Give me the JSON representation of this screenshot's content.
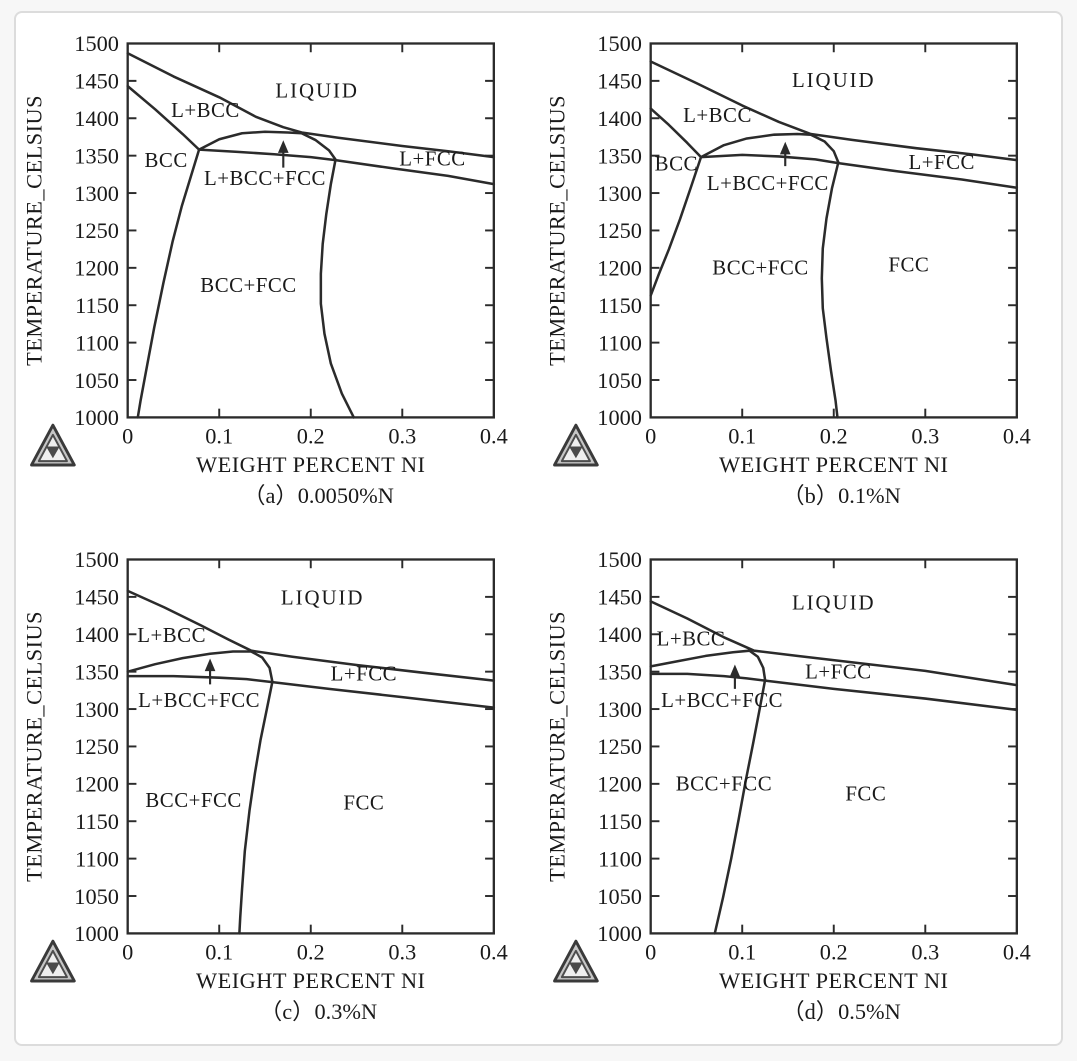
{
  "page": {
    "background": "#f7f7f7",
    "card_background": "#ffffff",
    "card_border": "#dcdcdc",
    "line_color": "#2b2b2b",
    "text_color": "#1a1a1a"
  },
  "branding": {
    "logo": "thermo-calc-triangle-logo"
  },
  "axes": {
    "x": {
      "title": "WEIGHT PERCENT NI",
      "min": 0,
      "max": 0.4,
      "ticks": [
        0,
        0.1,
        0.2,
        0.3,
        0.4
      ],
      "tick_labels": [
        "0",
        "0.1",
        "0.2",
        "0.3",
        "0.4"
      ]
    },
    "y": {
      "title": "TEMPERATURE_CELSIUS",
      "min": 1000,
      "max": 1500,
      "ticks": [
        1000,
        1050,
        1100,
        1150,
        1200,
        1250,
        1300,
        1350,
        1400,
        1450,
        1500
      ],
      "tick_labels": [
        "1000",
        "1050",
        "1100",
        "1150",
        "1200",
        "1250",
        "1300",
        "1350",
        "1400",
        "1450",
        "1500"
      ]
    }
  },
  "chart_data": [
    {
      "type": "line",
      "id": "a",
      "caption": "（a）0.0050%N",
      "xlabel": "WEIGHT PERCENT NI",
      "ylabel": "TEMPERATURE_CELSIUS",
      "xlim": [
        0,
        0.4
      ],
      "ylim": [
        1000,
        1500
      ],
      "arrow": {
        "x": 0.17,
        "y_from": 1334,
        "y_to": 1368
      },
      "region_labels": [
        {
          "text": "LIQUID",
          "x": 0.207,
          "y": 1437
        },
        {
          "text": "L+BCC",
          "x": 0.085,
          "y": 1411
        },
        {
          "text": "BCC",
          "x": 0.042,
          "y": 1344
        },
        {
          "text": "L+BCC+FCC",
          "x": 0.15,
          "y": 1320
        },
        {
          "text": "L+FCC",
          "x": 0.333,
          "y": 1346
        },
        {
          "text": "BCC+FCC",
          "x": 0.132,
          "y": 1177
        }
      ],
      "series": [
        {
          "name": "liquidus-and-L+FCC-upper",
          "points": [
            [
              0,
              1487
            ],
            [
              0.05,
              1456
            ],
            [
              0.1,
              1428
            ],
            [
              0.14,
              1402
            ],
            [
              0.17,
              1388
            ],
            [
              0.19,
              1381
            ],
            [
              0.23,
              1374
            ],
            [
              0.3,
              1363
            ],
            [
              0.35,
              1356
            ],
            [
              0.4,
              1348
            ]
          ]
        },
        {
          "name": "bcc-solidus",
          "points": [
            [
              0,
              1443
            ],
            [
              0.03,
              1412
            ],
            [
              0.06,
              1379
            ],
            [
              0.078,
              1358
            ]
          ]
        },
        {
          "name": "peritectic-dome",
          "points": [
            [
              0.078,
              1358
            ],
            [
              0.1,
              1372
            ],
            [
              0.125,
              1380
            ],
            [
              0.15,
              1382
            ],
            [
              0.175,
              1381
            ],
            [
              0.19,
              1380
            ],
            [
              0.205,
              1371
            ],
            [
              0.22,
              1357
            ],
            [
              0.227,
              1345
            ]
          ]
        },
        {
          "name": "solvus-and-L+FCC-lower",
          "points": [
            [
              0.078,
              1358
            ],
            [
              0.12,
              1355
            ],
            [
              0.16,
              1352
            ],
            [
              0.2,
              1348
            ],
            [
              0.227,
              1344
            ],
            [
              0.29,
              1333
            ],
            [
              0.35,
              1323
            ],
            [
              0.4,
              1312
            ]
          ]
        },
        {
          "name": "bcc-phase-boundary",
          "points": [
            [
              0.078,
              1358
            ],
            [
              0.069,
              1322
            ],
            [
              0.059,
              1282
            ],
            [
              0.049,
              1235
            ],
            [
              0.039,
              1180
            ],
            [
              0.029,
              1120
            ],
            [
              0.021,
              1068
            ],
            [
              0.014,
              1022
            ],
            [
              0.011,
              1000
            ]
          ]
        },
        {
          "name": "fcc-phase-boundary",
          "points": [
            [
              0.227,
              1344
            ],
            [
              0.222,
              1312
            ],
            [
              0.217,
              1272
            ],
            [
              0.213,
              1232
            ],
            [
              0.211,
              1192
            ],
            [
              0.211,
              1152
            ],
            [
              0.215,
              1112
            ],
            [
              0.222,
              1072
            ],
            [
              0.234,
              1032
            ],
            [
              0.247,
              1000
            ]
          ]
        }
      ]
    },
    {
      "type": "line",
      "id": "b",
      "caption": "（b）0.1%N",
      "xlabel": "WEIGHT PERCENT NI",
      "ylabel": "TEMPERATURE_CELSIUS",
      "xlim": [
        0,
        0.4
      ],
      "ylim": [
        1000,
        1500
      ],
      "arrow": {
        "x": 0.147,
        "y_from": 1336,
        "y_to": 1366
      },
      "region_labels": [
        {
          "text": "LIQUID",
          "x": 0.2,
          "y": 1451
        },
        {
          "text": "L+BCC",
          "x": 0.073,
          "y": 1404
        },
        {
          "text": "BCC",
          "x": 0.028,
          "y": 1339
        },
        {
          "text": "L+BCC+FCC",
          "x": 0.128,
          "y": 1313
        },
        {
          "text": "L+FCC",
          "x": 0.318,
          "y": 1341
        },
        {
          "text": "BCC+FCC",
          "x": 0.12,
          "y": 1200
        },
        {
          "text": "FCC",
          "x": 0.282,
          "y": 1204
        }
      ],
      "series": [
        {
          "name": "liquidus-and-L+FCC-upper",
          "points": [
            [
              0,
              1476
            ],
            [
              0.05,
              1447
            ],
            [
              0.1,
              1417
            ],
            [
              0.14,
              1395
            ],
            [
              0.175,
              1379
            ],
            [
              0.22,
              1371
            ],
            [
              0.29,
              1360
            ],
            [
              0.35,
              1352
            ],
            [
              0.4,
              1344
            ]
          ]
        },
        {
          "name": "bcc-solidus",
          "points": [
            [
              0,
              1413
            ],
            [
              0.02,
              1391
            ],
            [
              0.04,
              1367
            ],
            [
              0.055,
              1348
            ]
          ]
        },
        {
          "name": "peritectic-dome",
          "points": [
            [
              0.055,
              1348
            ],
            [
              0.08,
              1364
            ],
            [
              0.105,
              1373
            ],
            [
              0.135,
              1378
            ],
            [
              0.16,
              1379
            ],
            [
              0.175,
              1378
            ],
            [
              0.19,
              1369
            ],
            [
              0.2,
              1356
            ],
            [
              0.205,
              1341
            ]
          ]
        },
        {
          "name": "solvus-and-L+FCC-lower",
          "points": [
            [
              0.055,
              1348
            ],
            [
              0.1,
              1351
            ],
            [
              0.14,
              1349
            ],
            [
              0.18,
              1345
            ],
            [
              0.205,
              1340
            ],
            [
              0.27,
              1329
            ],
            [
              0.34,
              1318
            ],
            [
              0.4,
              1307
            ]
          ]
        },
        {
          "name": "bcc-phase-boundary",
          "points": [
            [
              0.055,
              1348
            ],
            [
              0.044,
              1308
            ],
            [
              0.032,
              1265
            ],
            [
              0.02,
              1225
            ],
            [
              0.009,
              1192
            ],
            [
              0,
              1163
            ]
          ]
        },
        {
          "name": "fcc-phase-boundary",
          "points": [
            [
              0.205,
              1341
            ],
            [
              0.198,
              1306
            ],
            [
              0.192,
              1266
            ],
            [
              0.188,
              1226
            ],
            [
              0.187,
              1186
            ],
            [
              0.188,
              1146
            ],
            [
              0.192,
              1106
            ],
            [
              0.197,
              1062
            ],
            [
              0.202,
              1022
            ],
            [
              0.204,
              1000
            ]
          ]
        }
      ]
    },
    {
      "type": "line",
      "id": "c",
      "caption": "（c）0.3%N",
      "xlabel": "WEIGHT PERCENT NI",
      "ylabel": "TEMPERATURE_CELSIUS",
      "xlim": [
        0,
        0.4
      ],
      "ylim": [
        1000,
        1500
      ],
      "arrow": {
        "x": 0.09,
        "y_from": 1333,
        "y_to": 1365
      },
      "region_labels": [
        {
          "text": "LIQUID",
          "x": 0.213,
          "y": 1449
        },
        {
          "text": "L+BCC",
          "x": 0.048,
          "y": 1399
        },
        {
          "text": "L+BCC+FCC",
          "x": 0.078,
          "y": 1312
        },
        {
          "text": "L+FCC",
          "x": 0.258,
          "y": 1347
        },
        {
          "text": "BCC+FCC",
          "x": 0.072,
          "y": 1178
        },
        {
          "text": "FCC",
          "x": 0.258,
          "y": 1175
        }
      ],
      "series": [
        {
          "name": "liquidus-and-L+FCC-upper",
          "points": [
            [
              0,
              1458
            ],
            [
              0.04,
              1436
            ],
            [
              0.08,
              1412
            ],
            [
              0.11,
              1393
            ],
            [
              0.135,
              1378
            ],
            [
              0.18,
              1370
            ],
            [
              0.25,
              1359
            ],
            [
              0.32,
              1349
            ],
            [
              0.4,
              1338
            ]
          ]
        },
        {
          "name": "peritectic-dome",
          "points": [
            [
              0,
              1350
            ],
            [
              0.03,
              1360
            ],
            [
              0.06,
              1368
            ],
            [
              0.09,
              1374
            ],
            [
              0.115,
              1377
            ],
            [
              0.135,
              1377
            ],
            [
              0.147,
              1369
            ],
            [
              0.155,
              1355
            ],
            [
              0.158,
              1337
            ]
          ]
        },
        {
          "name": "solvus-and-L+FCC-lower",
          "points": [
            [
              0,
              1344
            ],
            [
              0.05,
              1344
            ],
            [
              0.1,
              1342
            ],
            [
              0.13,
              1340
            ],
            [
              0.158,
              1336
            ],
            [
              0.22,
              1327
            ],
            [
              0.3,
              1316
            ],
            [
              0.4,
              1302
            ]
          ]
        },
        {
          "name": "fcc-phase-boundary",
          "points": [
            [
              0.158,
              1336
            ],
            [
              0.152,
              1300
            ],
            [
              0.145,
              1258
            ],
            [
              0.139,
              1214
            ],
            [
              0.133,
              1164
            ],
            [
              0.128,
              1110
            ],
            [
              0.125,
              1060
            ],
            [
              0.123,
              1022
            ],
            [
              0.122,
              1000
            ]
          ]
        }
      ]
    },
    {
      "type": "line",
      "id": "d",
      "caption": "（d）0.5%N",
      "xlabel": "WEIGHT PERCENT NI",
      "ylabel": "TEMPERATURE_CELSIUS",
      "xlim": [
        0,
        0.4
      ],
      "ylim": [
        1000,
        1500
      ],
      "arrow": {
        "x": 0.092,
        "y_from": 1327,
        "y_to": 1357
      },
      "region_labels": [
        {
          "text": "LIQUID",
          "x": 0.2,
          "y": 1442
        },
        {
          "text": "L+BCC",
          "x": 0.044,
          "y": 1394
        },
        {
          "text": "L+BCC+FCC",
          "x": 0.078,
          "y": 1312
        },
        {
          "text": "L+FCC",
          "x": 0.205,
          "y": 1350
        },
        {
          "text": "BCC+FCC",
          "x": 0.08,
          "y": 1200
        },
        {
          "text": "FCC",
          "x": 0.235,
          "y": 1187
        }
      ],
      "series": [
        {
          "name": "liquidus-and-L+FCC-upper",
          "points": [
            [
              0,
              1444
            ],
            [
              0.04,
              1421
            ],
            [
              0.08,
              1396
            ],
            [
              0.113,
              1378
            ],
            [
              0.16,
              1371
            ],
            [
              0.23,
              1361
            ],
            [
              0.3,
              1351
            ],
            [
              0.4,
              1332
            ]
          ]
        },
        {
          "name": "peritectic-dome",
          "points": [
            [
              0,
              1357
            ],
            [
              0.03,
              1364
            ],
            [
              0.06,
              1371
            ],
            [
              0.09,
              1376
            ],
            [
              0.108,
              1378
            ],
            [
              0.117,
              1370
            ],
            [
              0.123,
              1355
            ],
            [
              0.125,
              1339
            ]
          ]
        },
        {
          "name": "solvus-and-L+FCC-lower",
          "points": [
            [
              0,
              1347
            ],
            [
              0.04,
              1347
            ],
            [
              0.08,
              1344
            ],
            [
              0.105,
              1341
            ],
            [
              0.125,
              1338
            ],
            [
              0.2,
              1327
            ],
            [
              0.3,
              1314
            ],
            [
              0.4,
              1299
            ]
          ]
        },
        {
          "name": "fcc-phase-boundary",
          "points": [
            [
              0.125,
              1339
            ],
            [
              0.119,
              1300
            ],
            [
              0.112,
              1255
            ],
            [
              0.104,
              1205
            ],
            [
              0.096,
              1152
            ],
            [
              0.088,
              1100
            ],
            [
              0.079,
              1048
            ],
            [
              0.071,
              1005
            ],
            [
              0.07,
              1000
            ]
          ]
        }
      ]
    }
  ]
}
